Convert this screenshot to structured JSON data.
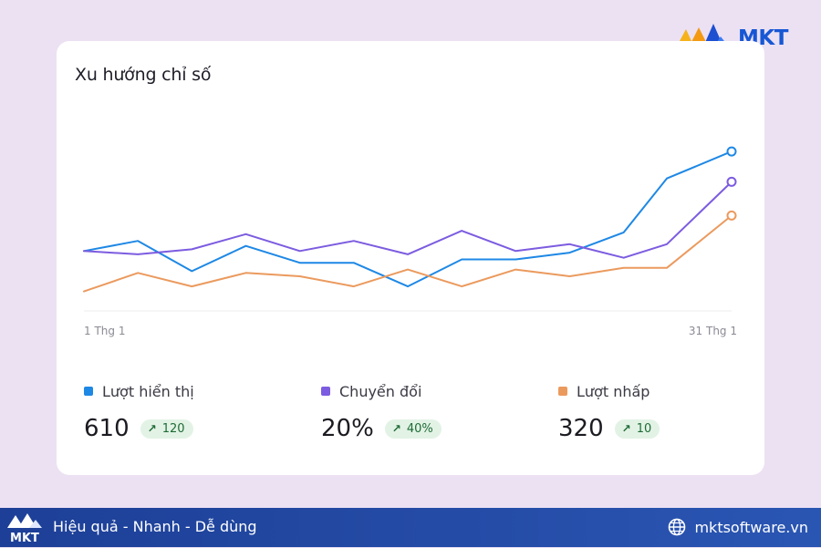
{
  "brand": {
    "logo_text": "MKT",
    "footer_logo_text": "MKT",
    "tagline": "Hiệu quả - Nhanh - Dễ dùng",
    "website": "mktsoftware.vn"
  },
  "card": {
    "title": "Xu hướng chỉ số"
  },
  "stats": [
    {
      "label": "Lượt hiển thị",
      "value": "610",
      "delta": "120",
      "color": "#1e88e5"
    },
    {
      "label": "Chuyển đổi",
      "value": "20%",
      "delta": "40%",
      "color": "#7c5ce0"
    },
    {
      "label": "Lượt nhấp",
      "value": "320",
      "delta": "10",
      "color": "#eb9a5e"
    }
  ],
  "chart_data": {
    "type": "line",
    "title": "Xu hướng chỉ số",
    "x_tick_labels": [
      "1 Thg 1",
      "31 Thg 1"
    ],
    "x": [
      1,
      3.5,
      6,
      8.5,
      11,
      13.5,
      16,
      18.5,
      21,
      23.5,
      26,
      28,
      31
    ],
    "ylim": [
      0,
      100
    ],
    "grid": false,
    "legend_placement": "bottom",
    "series": [
      {
        "name": "Lượt hiển thị",
        "color": "#1e88e5",
        "values": [
          35,
          41,
          23,
          38,
          28,
          28,
          14,
          30,
          30,
          34,
          46,
          78,
          94
        ]
      },
      {
        "name": "Chuyển đổi",
        "color": "#7c5ce0",
        "values": [
          35,
          33,
          36,
          45,
          35,
          41,
          33,
          47,
          35,
          39,
          31,
          39,
          76
        ]
      },
      {
        "name": "Lượt nhấp",
        "color": "#eb9a5e",
        "values": [
          11,
          22,
          14,
          22,
          20,
          14,
          24,
          14,
          24,
          20,
          25,
          25,
          56
        ]
      }
    ]
  }
}
